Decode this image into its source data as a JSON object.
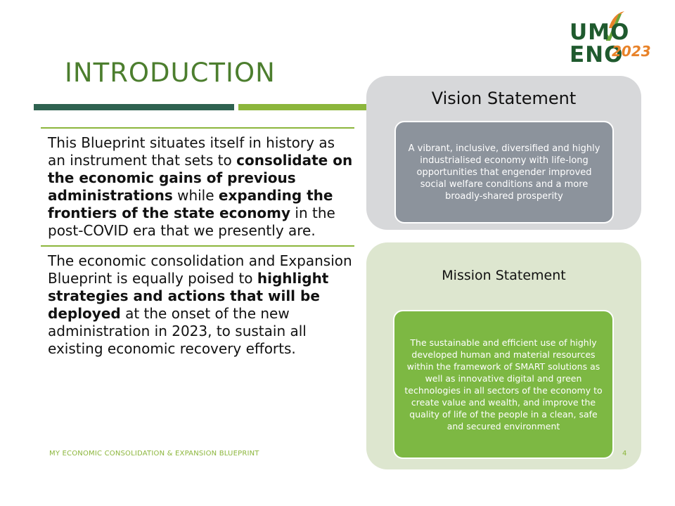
{
  "slide": {
    "title": "INTRODUCTION",
    "paragraphs": [
      {
        "runs": [
          {
            "text": "This Blueprint situates itself in history as an instrument that sets to ",
            "bold": false
          },
          {
            "text": "consolidate on the economic gains of previous administrations",
            "bold": true
          },
          {
            "text": " while ",
            "bold": false
          },
          {
            "text": "expanding the frontiers of the state economy",
            "bold": true
          },
          {
            "text": " in the post-COVID era that we presently are.",
            "bold": false
          }
        ]
      },
      {
        "runs": [
          {
            "text": "The economic consolidation and Expansion Blueprint is equally poised to ",
            "bold": false
          },
          {
            "text": "highlight strategies and actions that will be deployed",
            "bold": true
          },
          {
            "text": " at the onset of the new administration in 2023, to sustain all existing economic recovery efforts.",
            "bold": false
          }
        ]
      }
    ]
  },
  "vision": {
    "title": "Vision Statement",
    "text": "A vibrant, inclusive, diversified and highly industrialised economy with life-long opportunities that engender improved social welfare conditions and a more broadly-shared prosperity"
  },
  "mission": {
    "title": "Mission Statement",
    "text": "The sustainable and efficient use of highly developed human and material resources within the framework of SMART solutions as well as innovative digital and green technologies in all sectors of the economy to create value and wealth, and improve the quality of life of the people in a clean, safe and secured environment"
  },
  "logo": {
    "line1": "UMO",
    "line2": "ENO",
    "year": "2023",
    "icon": "campaign-logo-icon"
  },
  "footer": {
    "text": "MY ECONOMIC CONSOLIDATION & EXPANSION  BLUEPRINT",
    "page": "4"
  },
  "colors": {
    "title": "#4c7e2e",
    "accent_dark": "#2f6250",
    "accent_green": "#8cb63c",
    "vision_panel": "#d7d8da",
    "vision_inner": "#8c939c",
    "mission_panel": "#dde6cf",
    "mission_inner": "#7db843"
  }
}
